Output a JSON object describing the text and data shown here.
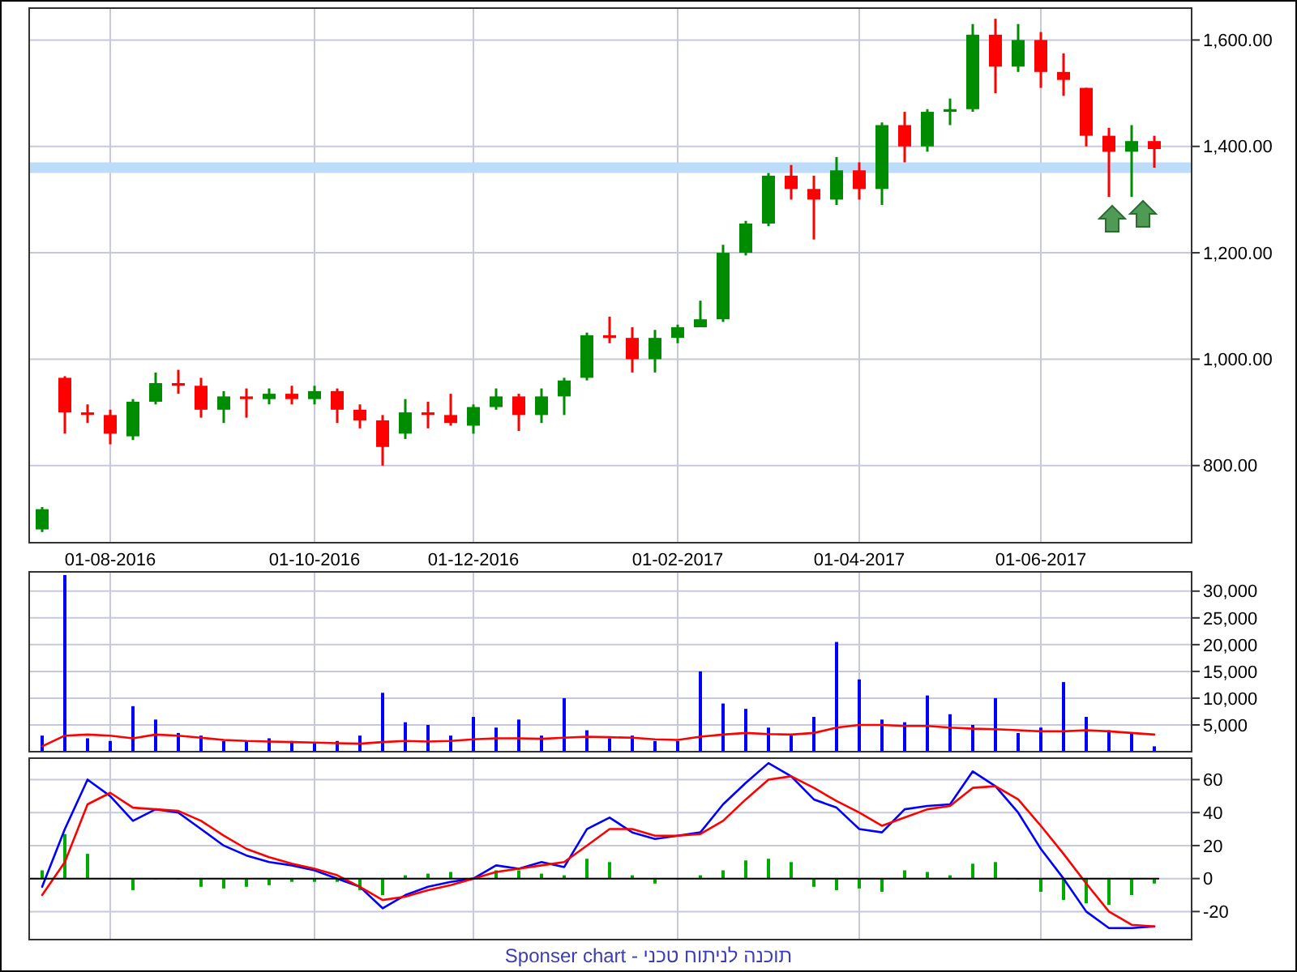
{
  "chart_data": [
    {
      "type": "candlestick",
      "categories": [
        null,
        null,
        null,
        "01-08-2016",
        null,
        null,
        null,
        null,
        null,
        null,
        null,
        null,
        "01-10-2016",
        null,
        null,
        null,
        null,
        null,
        null,
        "01-12-2016",
        null,
        null,
        null,
        null,
        null,
        null,
        null,
        null,
        "01-02-2017",
        null,
        null,
        null,
        null,
        null,
        null,
        null,
        "01-04-2017",
        null,
        null,
        null,
        null,
        null,
        null,
        null,
        "01-06-2017",
        null,
        null,
        null,
        null,
        null
      ],
      "ohlc": [
        [
          680,
          722,
          675,
          718
        ],
        [
          965,
          968,
          860,
          900
        ],
        [
          900,
          915,
          880,
          895
        ],
        [
          895,
          905,
          840,
          860
        ],
        [
          855,
          925,
          848,
          920
        ],
        [
          920,
          975,
          915,
          955
        ],
        [
          955,
          980,
          935,
          950
        ],
        [
          950,
          965,
          890,
          905
        ],
        [
          905,
          940,
          880,
          930
        ],
        [
          930,
          945,
          890,
          925
        ],
        [
          925,
          945,
          915,
          935
        ],
        [
          935,
          950,
          915,
          925
        ],
        [
          925,
          950,
          915,
          940
        ],
        [
          940,
          945,
          880,
          905
        ],
        [
          905,
          915,
          870,
          885
        ],
        [
          885,
          895,
          800,
          835
        ],
        [
          860,
          925,
          850,
          900
        ],
        [
          900,
          920,
          870,
          895
        ],
        [
          895,
          935,
          875,
          880
        ],
        [
          875,
          915,
          860,
          910
        ],
        [
          910,
          945,
          905,
          930
        ],
        [
          930,
          935,
          865,
          895
        ],
        [
          895,
          945,
          880,
          930
        ],
        [
          930,
          965,
          895,
          960
        ],
        [
          965,
          1050,
          960,
          1045
        ],
        [
          1045,
          1080,
          1030,
          1040
        ],
        [
          1040,
          1060,
          975,
          1000
        ],
        [
          1000,
          1055,
          975,
          1040
        ],
        [
          1040,
          1065,
          1030,
          1060
        ],
        [
          1060,
          1110,
          1060,
          1075
        ],
        [
          1075,
          1215,
          1070,
          1200
        ],
        [
          1200,
          1260,
          1195,
          1255
        ],
        [
          1255,
          1350,
          1250,
          1345
        ],
        [
          1345,
          1365,
          1300,
          1320
        ],
        [
          1320,
          1345,
          1225,
          1300
        ],
        [
          1300,
          1380,
          1290,
          1355
        ],
        [
          1355,
          1370,
          1300,
          1320
        ],
        [
          1320,
          1445,
          1290,
          1440
        ],
        [
          1440,
          1465,
          1370,
          1400
        ],
        [
          1400,
          1470,
          1390,
          1465
        ],
        [
          1465,
          1490,
          1440,
          1470
        ],
        [
          1470,
          1630,
          1465,
          1610
        ],
        [
          1610,
          1640,
          1500,
          1550
        ],
        [
          1550,
          1630,
          1540,
          1600
        ],
        [
          1600,
          1615,
          1510,
          1540
        ],
        [
          1540,
          1575,
          1495,
          1525
        ],
        [
          1510,
          1510,
          1400,
          1420
        ],
        [
          1420,
          1435,
          1305,
          1390
        ],
        [
          1390,
          1440,
          1305,
          1410
        ],
        [
          1410,
          1420,
          1360,
          1395
        ]
      ],
      "ylim": [
        655,
        1660
      ],
      "yticks": [
        {
          "value": 800,
          "label": "800.00"
        },
        {
          "value": 1000,
          "label": "1,000.00"
        },
        {
          "value": 1200,
          "label": "1,200.00"
        },
        {
          "value": 1400,
          "label": "1,400.00"
        },
        {
          "value": 1600,
          "label": "1,600.00"
        }
      ],
      "bands": [
        {
          "axis": "y",
          "from": 1350,
          "to": 1370,
          "color": "#bcdcfa"
        }
      ],
      "grid": true
    },
    {
      "type": "bar",
      "categories": [
        null,
        null,
        null,
        null,
        null,
        null,
        null,
        null,
        null,
        null,
        null,
        null,
        null,
        null,
        null,
        null,
        null,
        null,
        null,
        null,
        null,
        null,
        null,
        null,
        null,
        null,
        null,
        null,
        null,
        null,
        null,
        null,
        null,
        null,
        null,
        null,
        null,
        null,
        null,
        null,
        null,
        null,
        null,
        null,
        null,
        null,
        null,
        null,
        null,
        null
      ],
      "series": [
        {
          "type": "bar",
          "color": "#0000ff",
          "values": [
            3000,
            33000,
            2500,
            2000,
            8500,
            6000,
            3500,
            3000,
            2000,
            2000,
            2500,
            2000,
            1500,
            2000,
            3000,
            11000,
            5500,
            5000,
            3000,
            6500,
            4500,
            6000,
            3000,
            10000,
            4000,
            2500,
            3000,
            2000,
            2000,
            15000,
            9000,
            8000,
            4500,
            3000,
            6500,
            20500,
            13500,
            6000,
            5500,
            10500,
            7000,
            5000,
            10000,
            3500,
            4500,
            13000,
            6500,
            4000,
            3500,
            1000
          ]
        },
        {
          "type": "line",
          "color": "#ff0000",
          "values": [
            1000,
            3000,
            3200,
            3000,
            2500,
            3200,
            3000,
            2600,
            2200,
            2000,
            1900,
            1800,
            1700,
            1600,
            1500,
            1800,
            2000,
            1900,
            2000,
            2300,
            2500,
            2500,
            2400,
            2600,
            2800,
            2700,
            2600,
            2300,
            2200,
            2800,
            3200,
            3500,
            3300,
            3200,
            3500,
            4500,
            5000,
            5000,
            4800,
            4800,
            4500,
            4300,
            4200,
            4000,
            3800,
            3800,
            4000,
            3800,
            3500,
            3200
          ]
        }
      ],
      "ylim": [
        0,
        33600
      ],
      "yticks": [
        {
          "value": 5000,
          "label": "5,000"
        },
        {
          "value": 10000,
          "label": "10,000"
        },
        {
          "value": 15000,
          "label": "15,000"
        },
        {
          "value": 20000,
          "label": "20,000"
        },
        {
          "value": 25000,
          "label": "25,000"
        },
        {
          "value": 30000,
          "label": "30,000"
        }
      ],
      "grid": true,
      "tick_labels": "y"
    },
    {
      "type": "line",
      "categories": [
        null,
        null,
        null,
        null,
        null,
        null,
        null,
        null,
        null,
        null,
        null,
        null,
        null,
        null,
        null,
        null,
        null,
        null,
        null,
        null,
        null,
        null,
        null,
        null,
        null,
        null,
        null,
        null,
        null,
        null,
        null,
        null,
        null,
        null,
        null,
        null,
        null,
        null,
        null,
        null,
        null,
        null,
        null,
        null,
        null,
        null,
        null,
        null,
        null,
        null
      ],
      "series": [
        {
          "type": "bar",
          "color": "#00aa00",
          "values": [
            5,
            27,
            15,
            0,
            -7,
            0,
            0,
            -5,
            -6,
            -5,
            -4,
            -2,
            -2,
            -2,
            -7,
            -10,
            2,
            3,
            4,
            0,
            5,
            5,
            3,
            2,
            12,
            10,
            2,
            -3,
            0,
            2,
            5,
            11,
            12,
            10,
            -5,
            -7,
            -6,
            -8,
            5,
            4,
            2,
            9,
            10,
            0,
            -8,
            -13,
            -15,
            -16,
            -10,
            -3
          ]
        },
        {
          "type": "line",
          "color": "#0000ff",
          "values": [
            -5,
            30,
            60,
            50,
            35,
            42,
            40,
            30,
            20,
            14,
            10,
            8,
            5,
            0,
            -5,
            -18,
            -10,
            -5,
            -2,
            0,
            8,
            6,
            10,
            7,
            30,
            37,
            28,
            24,
            26,
            28,
            45,
            58,
            70,
            62,
            48,
            43,
            30,
            28,
            42,
            44,
            45,
            65,
            56,
            40,
            18,
            0,
            -20,
            -30,
            -30,
            -29
          ]
        },
        {
          "type": "line",
          "color": "#ff0000",
          "values": [
            -10,
            10,
            45,
            52,
            43,
            42,
            41,
            35,
            26,
            18,
            13,
            9,
            6,
            2,
            -5,
            -13,
            -11,
            -7,
            -4,
            0,
            4,
            6,
            8,
            10,
            20,
            30,
            30,
            26,
            26,
            27,
            35,
            48,
            60,
            62,
            55,
            47,
            40,
            32,
            37,
            42,
            44,
            55,
            56,
            48,
            32,
            15,
            -3,
            -20,
            -28,
            -29
          ]
        }
      ],
      "ylim": [
        -37,
        73
      ],
      "yticks": [
        -20,
        0,
        20,
        40,
        60
      ],
      "grid": true,
      "tick_labels": "y",
      "annotations": [
        "Sponser chart - תוכנה לניתוח טכני"
      ]
    }
  ]
}
